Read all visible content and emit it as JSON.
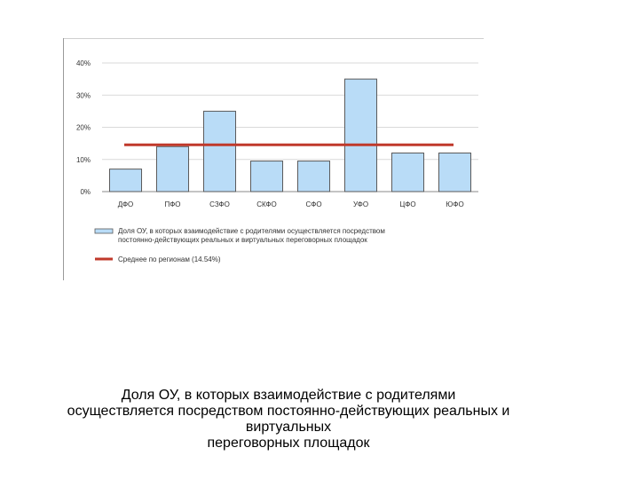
{
  "chart_data": {
    "type": "bar",
    "categories": [
      "ДФО",
      "ПФО",
      "СЗФО",
      "СКФО",
      "СФО",
      "УФО",
      "ЦФО",
      "ЮФО"
    ],
    "series": [
      {
        "name": "Доля ОУ, в которых взаимодействие с родителями осуществляется посредством постоянно-действующих реальных и виртуальных переговорных площадок",
        "values": [
          7,
          14,
          25,
          9.5,
          9.5,
          35,
          12,
          12
        ],
        "color": "#b9dcf7",
        "border": "#5a5a5a"
      }
    ],
    "reference_line": {
      "name": "Среднее по регионам (14.54%)",
      "value": 14.54,
      "color": "#c0392b"
    },
    "yticks": [
      "0%",
      "10%",
      "20%",
      "30%",
      "40%"
    ],
    "ylim": [
      0,
      40
    ],
    "grid": true,
    "legend_position": "bottom",
    "legend": {
      "series_line1": "Доля ОУ, в которых взаимодействие с родителями осуществляется посредством",
      "series_line2": "постоянно-действующих реальных и виртуальных переговорных площадок",
      "mean_label": "Среднее по регионам (14.54%)"
    }
  },
  "caption": {
    "line1": "Доля ОУ, в которых взаимодействие с родителями",
    "line2": "осуществляется посредством постоянно-действующих реальных и",
    "line3": "виртуальных",
    "line4": "переговорных площадок"
  }
}
